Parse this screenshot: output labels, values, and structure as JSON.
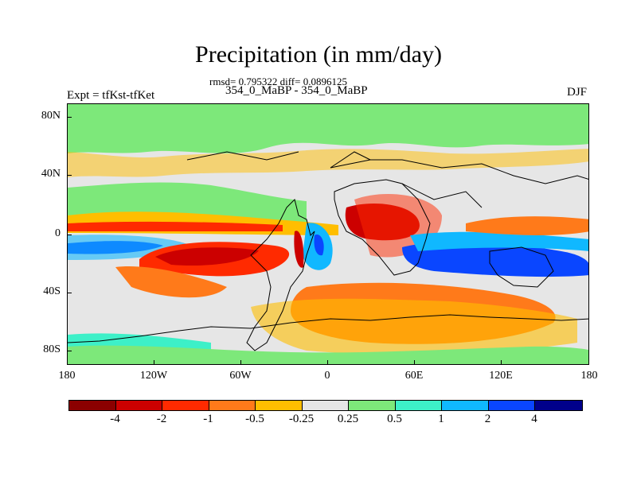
{
  "title": "Precipitation (in mm/day)",
  "stats_line": "rmsd= 0.795322 diff= 0.0896125",
  "periods_line": "354_0_MaBP - 354_0_MaBP",
  "expt_label": "Expt = tfKst-tfKet",
  "season_label": "DJF",
  "lat_labels": [
    "80N",
    "40N",
    "0",
    "40S",
    "80S"
  ],
  "lon_labels": [
    "180",
    "120W",
    "60W",
    "0",
    "60E",
    "120E",
    "180"
  ],
  "colorbar": {
    "colors": [
      "#8b0000",
      "#cc0000",
      "#ff2a00",
      "#ff7a1a",
      "#ffbe00",
      "#e6e6e6",
      "#7de87a",
      "#3df0c8",
      "#10b8ff",
      "#0a46ff",
      "#00008b"
    ],
    "labels": [
      "-4",
      "-2",
      "-1",
      "-0.5",
      "-0.25",
      "0.25",
      "0.5",
      "1",
      "2",
      "4"
    ]
  },
  "colors": {
    "background": "#e6e6e6",
    "green": "#7de87a",
    "red": "#cc0000",
    "orange": "#ff7a1a",
    "blue": "#0a46ff",
    "coastline": "#000000"
  }
}
